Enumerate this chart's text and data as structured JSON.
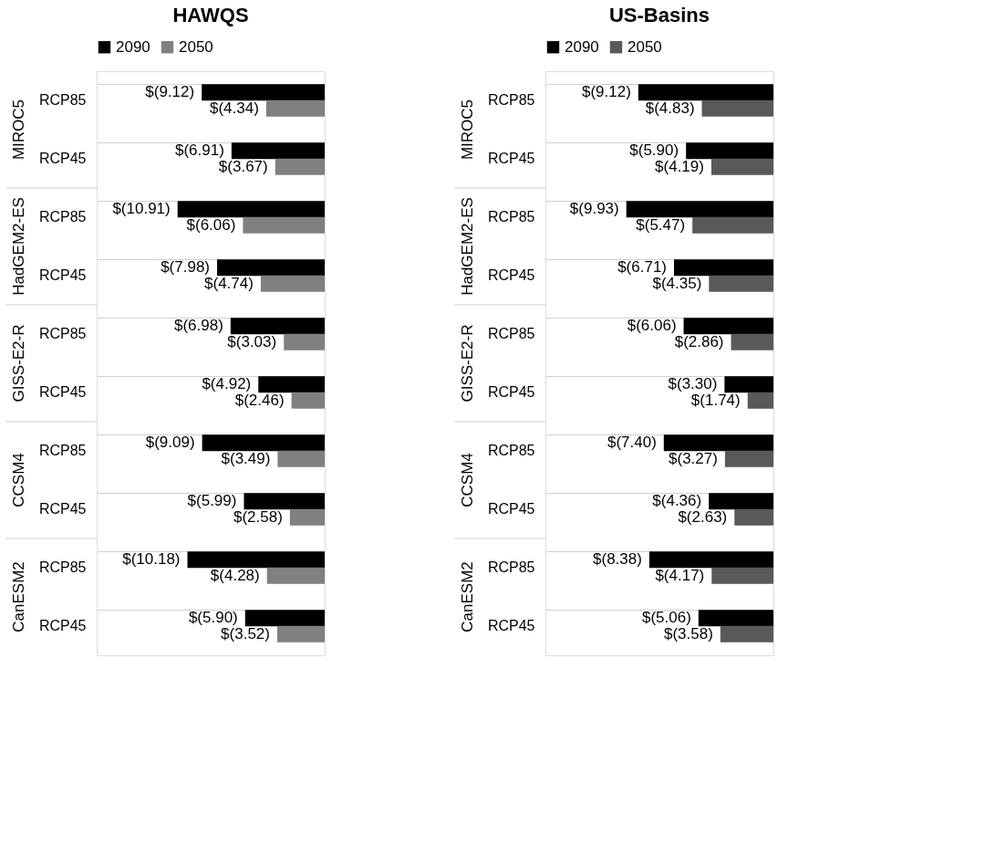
{
  "chart_data": [
    {
      "type": "bar",
      "orientation": "horizontal",
      "title": "HAWQS",
      "legend": "top",
      "categories": [
        "RCP85",
        "RCP45",
        "RCP85",
        "RCP45",
        "RCP85",
        "RCP45",
        "RCP85",
        "RCP45",
        "RCP85",
        "RCP45"
      ],
      "annotations": [
        "MIROC5",
        "HadGEM2-ES",
        "GISS-E2-R",
        "CCSM4",
        "CanESM2"
      ],
      "series": [
        {
          "name": "2090",
          "color": "#000000",
          "values": [
            -9.12,
            -6.91,
            -10.91,
            -7.98,
            -6.98,
            -4.92,
            -9.09,
            -5.99,
            -10.18,
            -5.9
          ],
          "value_labels": [
            "$(9.12)",
            "$(6.91)",
            "$(10.91)",
            "$(7.98)",
            "$(6.98)",
            "$(4.92)",
            "$(9.09)",
            "$(5.99)",
            "$(10.18)",
            "$(5.90)"
          ]
        },
        {
          "name": "2050",
          "color": "#808080",
          "values": [
            -4.34,
            -3.67,
            -6.06,
            -4.74,
            -3.03,
            -2.46,
            -3.49,
            -2.58,
            -4.28,
            -3.52
          ],
          "value_labels": [
            "$(4.34)",
            "$(3.67)",
            "$(6.06)",
            "$(4.74)",
            "$(3.03)",
            "$(2.46)",
            "$(3.49)",
            "$(2.58)",
            "$(4.28)",
            "$(3.52)"
          ]
        }
      ]
    },
    {
      "type": "bar",
      "orientation": "horizontal",
      "title": "US-Basins",
      "legend": "top",
      "categories": [
        "RCP85",
        "RCP45",
        "RCP85",
        "RCP45",
        "RCP85",
        "RCP45",
        "RCP85",
        "RCP45",
        "RCP85",
        "RCP45"
      ],
      "annotations": [
        "MIROC5",
        "HadGEM2-ES",
        "GISS-E2-R",
        "CCSM4",
        "CanESM2"
      ],
      "series": [
        {
          "name": "2090",
          "color": "#000000",
          "values": [
            -9.12,
            -5.9,
            -9.93,
            -6.71,
            -6.06,
            -3.3,
            -7.4,
            -4.36,
            -8.38,
            -5.06
          ],
          "value_labels": [
            "$(9.12)",
            "$(5.90)",
            "$(9.93)",
            "$(6.71)",
            "$(6.06)",
            "$(3.30)",
            "$(7.40)",
            "$(4.36)",
            "$(8.38)",
            "$(5.06)"
          ]
        },
        {
          "name": "2050",
          "color": "#595959",
          "values": [
            -4.83,
            -4.19,
            -5.47,
            -4.35,
            -2.86,
            -1.74,
            -3.27,
            -2.63,
            -4.17,
            -3.58
          ],
          "value_labels": [
            "$(4.83)",
            "$(4.19)",
            "$(5.47)",
            "$(4.35)",
            "$(2.86)",
            "$(1.74)",
            "$(3.27)",
            "$(2.63)",
            "$(4.17)",
            "$(3.58)"
          ]
        }
      ]
    }
  ]
}
